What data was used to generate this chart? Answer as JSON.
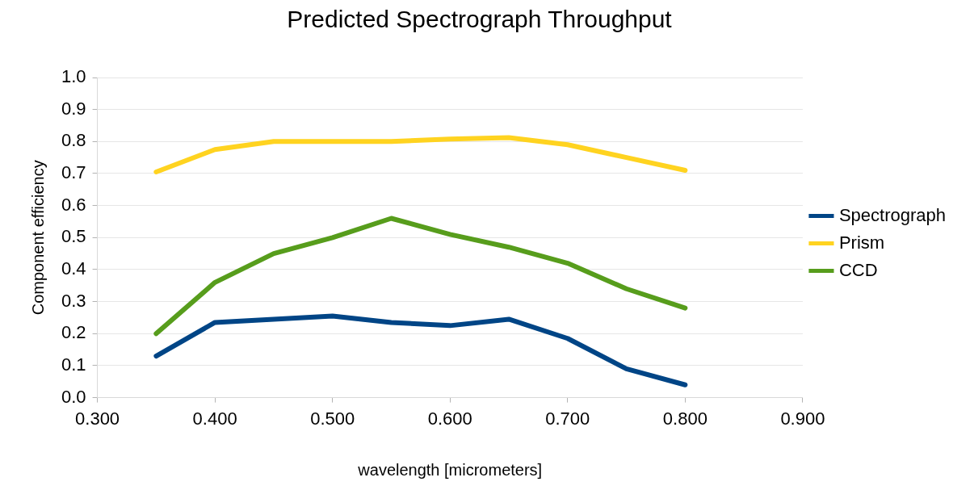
{
  "chart_data": {
    "type": "line",
    "title": "Predicted Spectrograph Throughput",
    "xlabel": "wavelength [micrometers]",
    "ylabel": "Component efficiency",
    "x": [
      0.35,
      0.4,
      0.45,
      0.5,
      0.55,
      0.6,
      0.65,
      0.7,
      0.75,
      0.8
    ],
    "series": [
      {
        "name": "Spectrograph",
        "color": "#004586",
        "values": [
          0.13,
          0.235,
          0.245,
          0.255,
          0.235,
          0.225,
          0.245,
          0.185,
          0.09,
          0.04
        ]
      },
      {
        "name": "Prism",
        "color": "#ffd320",
        "values": [
          0.705,
          0.775,
          0.8,
          0.8,
          0.8,
          0.808,
          0.812,
          0.79,
          0.75,
          0.71
        ]
      },
      {
        "name": "CCD",
        "color": "#579d1c",
        "values": [
          0.2,
          0.36,
          0.45,
          0.5,
          0.56,
          0.51,
          0.47,
          0.42,
          0.34,
          0.28
        ]
      }
    ],
    "xlim": [
      0.3,
      0.9
    ],
    "xticks": [
      {
        "value": 0.3,
        "label": "0.300"
      },
      {
        "value": 0.4,
        "label": "0.400"
      },
      {
        "value": 0.5,
        "label": "0.500"
      },
      {
        "value": 0.6,
        "label": "0.600"
      },
      {
        "value": 0.7,
        "label": "0.700"
      },
      {
        "value": 0.8,
        "label": "0.800"
      },
      {
        "value": 0.9,
        "label": "0.900"
      }
    ],
    "ylim": [
      0,
      1
    ],
    "yticks": [
      {
        "value": 0,
        "label": "0.0"
      },
      {
        "value": 0.1,
        "label": "0.1"
      },
      {
        "value": 0.2,
        "label": "0.2"
      },
      {
        "value": 0.3,
        "label": "0.3"
      },
      {
        "value": 0.4,
        "label": "0.4"
      },
      {
        "value": 0.5,
        "label": "0.5"
      },
      {
        "value": 0.6,
        "label": "0.6"
      },
      {
        "value": 0.7,
        "label": "0.7"
      },
      {
        "value": 0.8,
        "label": "0.8"
      },
      {
        "value": 0.9,
        "label": "0.9"
      },
      {
        "value": 1,
        "label": "1.0"
      }
    ],
    "grid": "y",
    "legend": "right",
    "marker": "none",
    "line_style": "solid"
  }
}
